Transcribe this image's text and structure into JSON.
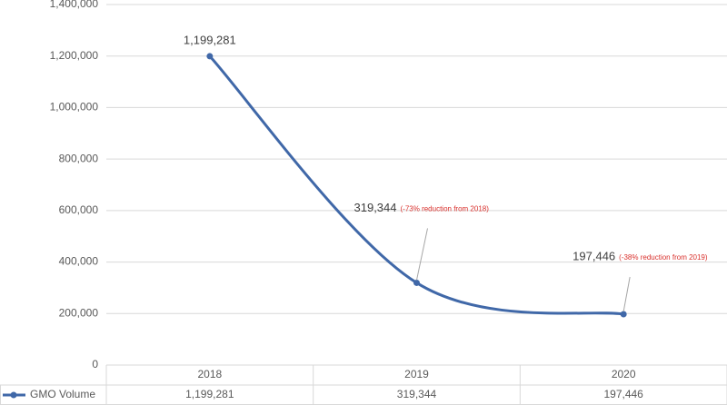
{
  "chart_data": {
    "type": "line",
    "categories": [
      "2018",
      "2019",
      "2020"
    ],
    "series": [
      {
        "name": "GMO Volume",
        "color": "#4068a8",
        "values": [
          1199281,
          319344,
          197446
        ],
        "value_labels": [
          "1,199,281",
          "319,344",
          "197,446"
        ]
      }
    ],
    "annotations": [
      "(-73% reduction from 2018)",
      "(-38% reduction from 2019)"
    ],
    "ylim": [
      0,
      1400000
    ],
    "yticks": [
      0,
      {
        "value": 200000,
        "label": "200,000"
      },
      {
        "value": 400000,
        "label": "400,000"
      },
      {
        "value": 600000,
        "label": "600,000"
      },
      {
        "value": 800000,
        "label": "800,000"
      },
      {
        "value": 1000000,
        "label": "1,000,000"
      },
      {
        "value": 1200000,
        "label": "1,200,000"
      },
      {
        "value": 1400000,
        "label": "1,400,000"
      }
    ],
    "grid": true,
    "smooth": true,
    "data_table": true
  }
}
